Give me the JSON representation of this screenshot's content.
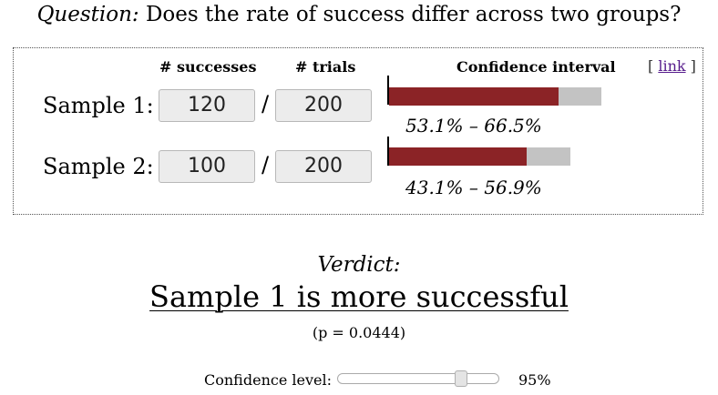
{
  "question": {
    "label": "Question:",
    "text": "Does the rate of success differ across two groups?"
  },
  "headers": {
    "successes": "# successes",
    "trials": "# trials",
    "confidence_interval": "Confidence interval",
    "link_prefix": "[ ",
    "link_label": "link",
    "link_suffix": " ]"
  },
  "samples": [
    {
      "label": "Sample 1:",
      "successes": "120",
      "trials": "200",
      "ci_text": "53.1% – 66.5%",
      "ci_low": 0.531,
      "ci_high": 0.665
    },
    {
      "label": "Sample 2:",
      "successes": "100",
      "trials": "200",
      "ci_text": "43.1% – 56.9%",
      "ci_low": 0.431,
      "ci_high": 0.569
    }
  ],
  "separator": "/",
  "verdict": {
    "label": "Verdict:",
    "text": "Sample 1 is more successful",
    "p_value": "(p = 0.0444)"
  },
  "confidence": {
    "label": "Confidence level:",
    "value_text": "95%",
    "slider_fraction": 0.79
  },
  "colors": {
    "ci_fill": "#8b2326",
    "ci_bar": "#c3c3c3",
    "link": "#551a8b"
  }
}
